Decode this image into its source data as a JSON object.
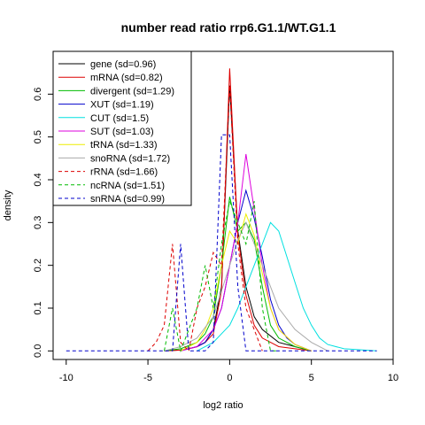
{
  "chart_data": {
    "type": "line",
    "title": "number read ratio rrp6.G1.1/WT.G1.1",
    "xlabel": "log2 ratio",
    "ylabel": "density",
    "xlim": [
      -10.8,
      10.0
    ],
    "ylim": [
      -0.02,
      0.7
    ],
    "xticks": [
      -10,
      -5,
      0,
      5,
      10
    ],
    "yticks": [
      0.0,
      0.1,
      0.2,
      0.3,
      0.4,
      0.5,
      0.6
    ],
    "legend_position": "top-left",
    "series": [
      {
        "name": "gene (sd=0.96)",
        "color": "#000000",
        "dash": false,
        "x": [
          -4.0,
          -3.0,
          -2.5,
          -2.0,
          -1.5,
          -1.0,
          -0.5,
          0.0,
          0.5,
          1.0,
          1.5,
          2.0,
          3.0,
          4.0,
          5.0
        ],
        "y": [
          0.0,
          0.002,
          0.005,
          0.01,
          0.02,
          0.05,
          0.15,
          0.62,
          0.28,
          0.15,
          0.08,
          0.05,
          0.02,
          0.01,
          0.0
        ]
      },
      {
        "name": "mRNA (sd=0.82)",
        "color": "#dd0000",
        "dash": false,
        "x": [
          -4.0,
          -3.0,
          -2.5,
          -2.0,
          -1.5,
          -1.0,
          -0.5,
          0.0,
          0.5,
          1.0,
          1.5,
          2.0,
          3.0,
          4.0,
          5.0
        ],
        "y": [
          0.0,
          0.002,
          0.005,
          0.01,
          0.02,
          0.04,
          0.14,
          0.66,
          0.27,
          0.13,
          0.06,
          0.03,
          0.01,
          0.005,
          0.0
        ]
      },
      {
        "name": "divergent (sd=1.29)",
        "color": "#00bb00",
        "dash": false,
        "x": [
          -4.0,
          -3.0,
          -2.0,
          -1.5,
          -1.0,
          -0.5,
          0.0,
          0.5,
          1.0,
          1.5,
          2.0,
          2.5,
          3.0,
          4.0,
          5.0
        ],
        "y": [
          0.0,
          0.005,
          0.02,
          0.04,
          0.08,
          0.2,
          0.36,
          0.28,
          0.3,
          0.26,
          0.15,
          0.06,
          0.03,
          0.01,
          0.0
        ]
      },
      {
        "name": "XUT (sd=1.19)",
        "color": "#0000cc",
        "dash": false,
        "x": [
          -3.0,
          -2.0,
          -1.5,
          -1.0,
          -0.5,
          0.0,
          0.5,
          1.0,
          1.5,
          2.0,
          2.5,
          3.0,
          3.5,
          4.0,
          5.0
        ],
        "y": [
          0.0,
          0.01,
          0.02,
          0.05,
          0.1,
          0.2,
          0.3,
          0.375,
          0.31,
          0.22,
          0.12,
          0.06,
          0.03,
          0.015,
          0.0
        ]
      },
      {
        "name": "CUT (sd=1.5)",
        "color": "#00e0e0",
        "dash": false,
        "x": [
          -2.0,
          -1.0,
          0.0,
          0.5,
          1.0,
          1.5,
          2.0,
          2.5,
          3.0,
          3.5,
          4.0,
          4.5,
          5.0,
          5.5,
          6.0,
          7.0,
          9.0
        ],
        "y": [
          0.0,
          0.02,
          0.06,
          0.1,
          0.15,
          0.2,
          0.25,
          0.3,
          0.28,
          0.22,
          0.16,
          0.1,
          0.06,
          0.03,
          0.015,
          0.005,
          0.0
        ]
      },
      {
        "name": "SUT (sd=1.03)",
        "color": "#dd00dd",
        "dash": false,
        "x": [
          -3.0,
          -2.0,
          -1.0,
          -0.5,
          0.0,
          0.5,
          1.0,
          1.5,
          2.0,
          2.5,
          3.0,
          4.0,
          5.0
        ],
        "y": [
          0.0,
          0.01,
          0.05,
          0.1,
          0.2,
          0.3,
          0.46,
          0.33,
          0.2,
          0.1,
          0.05,
          0.015,
          0.0
        ]
      },
      {
        "name": "tRNA (sd=1.33)",
        "color": "#eeee00",
        "dash": false,
        "x": [
          -3.0,
          -2.0,
          -1.5,
          -1.0,
          -0.5,
          0.0,
          0.5,
          1.0,
          1.5,
          2.0,
          2.5,
          3.0,
          4.0,
          5.0
        ],
        "y": [
          0.0,
          0.02,
          0.05,
          0.1,
          0.2,
          0.28,
          0.25,
          0.32,
          0.27,
          0.18,
          0.1,
          0.05,
          0.015,
          0.0
        ]
      },
      {
        "name": "snoRNA (sd=1.72)",
        "color": "#aaaaaa",
        "dash": false,
        "x": [
          -4.0,
          -3.0,
          -2.0,
          -1.0,
          0.0,
          0.5,
          1.0,
          1.5,
          2.0,
          2.5,
          3.0,
          4.0,
          5.0,
          6.0
        ],
        "y": [
          0.0,
          0.01,
          0.03,
          0.08,
          0.2,
          0.26,
          0.3,
          0.25,
          0.2,
          0.15,
          0.1,
          0.05,
          0.02,
          0.0
        ]
      },
      {
        "name": "rRNA (sd=1.66)",
        "color": "#dd0000",
        "dash": true,
        "x": [
          -5.0,
          -4.5,
          -4.0,
          -3.5,
          -3.0,
          -2.5,
          -2.0,
          -1.5,
          -1.0,
          -0.5,
          0.0,
          0.5,
          1.0,
          2.0
        ],
        "y": [
          0.0,
          0.02,
          0.06,
          0.25,
          0.02,
          0.0,
          0.1,
          0.15,
          0.23,
          0.2,
          0.62,
          0.25,
          0.1,
          0.0
        ]
      },
      {
        "name": "ncRNA (sd=1.51)",
        "color": "#00bb00",
        "dash": true,
        "x": [
          -4.0,
          -3.5,
          -3.0,
          -2.5,
          -2.0,
          -1.5,
          -1.0,
          -0.5,
          0.0,
          0.5,
          1.0,
          1.5,
          2.0,
          2.5,
          3.0
        ],
        "y": [
          0.0,
          0.1,
          0.0,
          0.05,
          0.1,
          0.2,
          0.1,
          0.25,
          0.35,
          0.3,
          0.25,
          0.35,
          0.1,
          0.0,
          0.0
        ]
      },
      {
        "name": "snRNA (sd=0.99)",
        "color": "#0000cc",
        "dash": true,
        "x": [
          -10.0,
          -3.5,
          -3.0,
          -2.5,
          -2.0,
          -1.5,
          -1.0,
          -0.5,
          0.0,
          0.5,
          1.0,
          1.5,
          9.0
        ],
        "y": [
          0.0,
          0.0,
          0.25,
          0.0,
          0.0,
          0.0,
          0.02,
          0.505,
          0.505,
          0.15,
          0.0,
          0.0,
          0.0
        ]
      }
    ]
  }
}
